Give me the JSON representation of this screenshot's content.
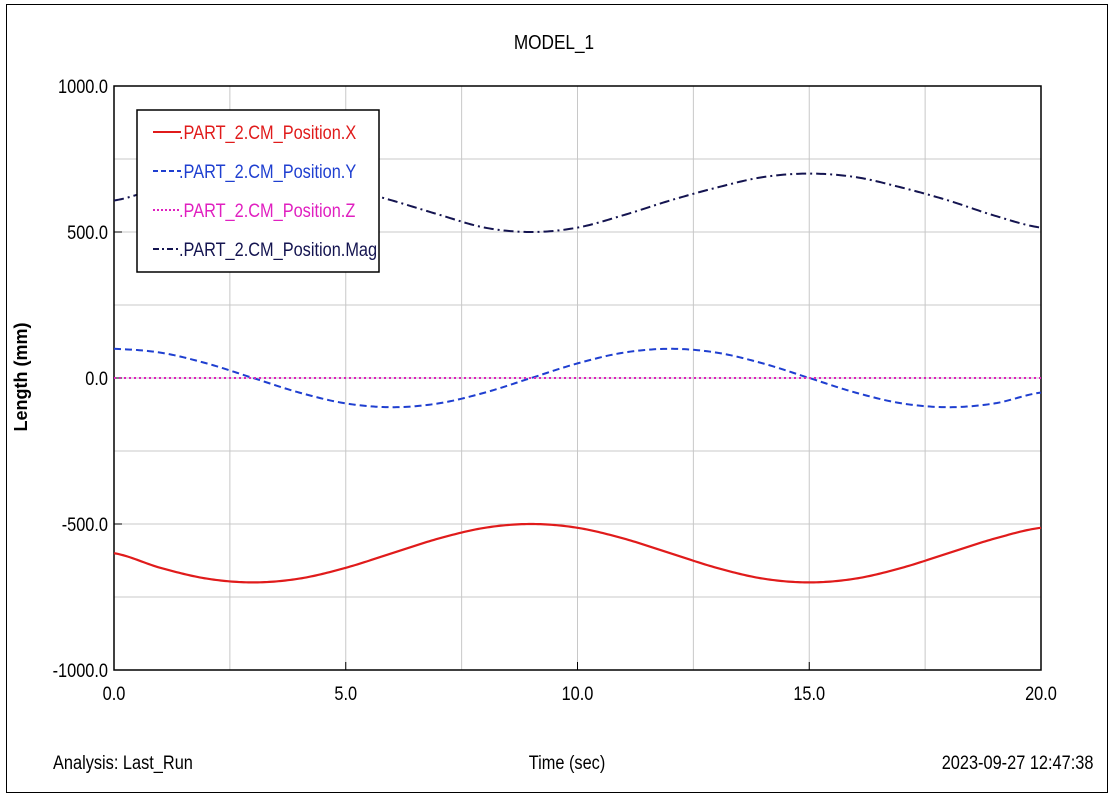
{
  "chart_data": {
    "type": "line",
    "title": "MODEL_1",
    "xlabel": "Time (sec)",
    "ylabel": "Length (mm)",
    "xlim": [
      0.0,
      20.0
    ],
    "ylim": [
      -1000.0,
      1000.0
    ],
    "xticks": [
      "0.0",
      "5.0",
      "10.0",
      "15.0",
      "20.0"
    ],
    "yticks": [
      "1000.0",
      "500.0",
      "0.0",
      "-500.0",
      "-1000.0"
    ],
    "grid": true,
    "legend_position": "top-left",
    "series": [
      {
        "name": ".PART_2.CM_Position.X",
        "color": "#e01b1b",
        "style": "solid",
        "x": [
          0,
          1,
          2,
          3,
          4,
          5,
          6,
          7,
          8,
          9,
          10,
          11,
          12,
          13,
          14,
          15,
          16,
          17,
          18,
          19,
          20
        ],
        "y": [
          -600,
          -650,
          -687,
          -700,
          -687,
          -650,
          -600,
          -550,
          -513,
          -500,
          -513,
          -550,
          -600,
          -650,
          -687,
          -700,
          -687,
          -650,
          -600,
          -550,
          -513
        ]
      },
      {
        "name": ".PART_2.CM_Position.Y",
        "color": "#1f3fd0",
        "style": "dashed",
        "x": [
          0,
          1,
          2,
          3,
          4,
          5,
          6,
          7,
          8,
          9,
          10,
          11,
          12,
          13,
          14,
          15,
          16,
          17,
          18,
          19,
          20
        ],
        "y": [
          100,
          87,
          50,
          0,
          -50,
          -87,
          -100,
          -87,
          -50,
          0,
          50,
          87,
          100,
          87,
          50,
          0,
          -50,
          -87,
          -100,
          -87,
          -50
        ]
      },
      {
        "name": ".PART_2.CM_Position.Z",
        "color": "#e020c0",
        "style": "dotted",
        "x": [
          0,
          20
        ],
        "y": [
          0,
          0
        ]
      },
      {
        "name": ".PART_2.CM_Position.Mag",
        "color": "#141450",
        "style": "dashdot",
        "x": [
          0,
          1,
          2,
          3,
          4,
          5,
          6,
          7,
          8,
          9,
          10,
          11,
          12,
          13,
          14,
          15,
          16,
          17,
          18,
          19,
          20
        ],
        "y": [
          608,
          652,
          688,
          700,
          688,
          652,
          608,
          560,
          515,
          500,
          515,
          558,
          608,
          652,
          688,
          700,
          688,
          652,
          608,
          556,
          515
        ]
      }
    ]
  },
  "footer": {
    "analysis": "Analysis:  Last_Run",
    "timestamp": "2023-09-27 12:47:38"
  }
}
